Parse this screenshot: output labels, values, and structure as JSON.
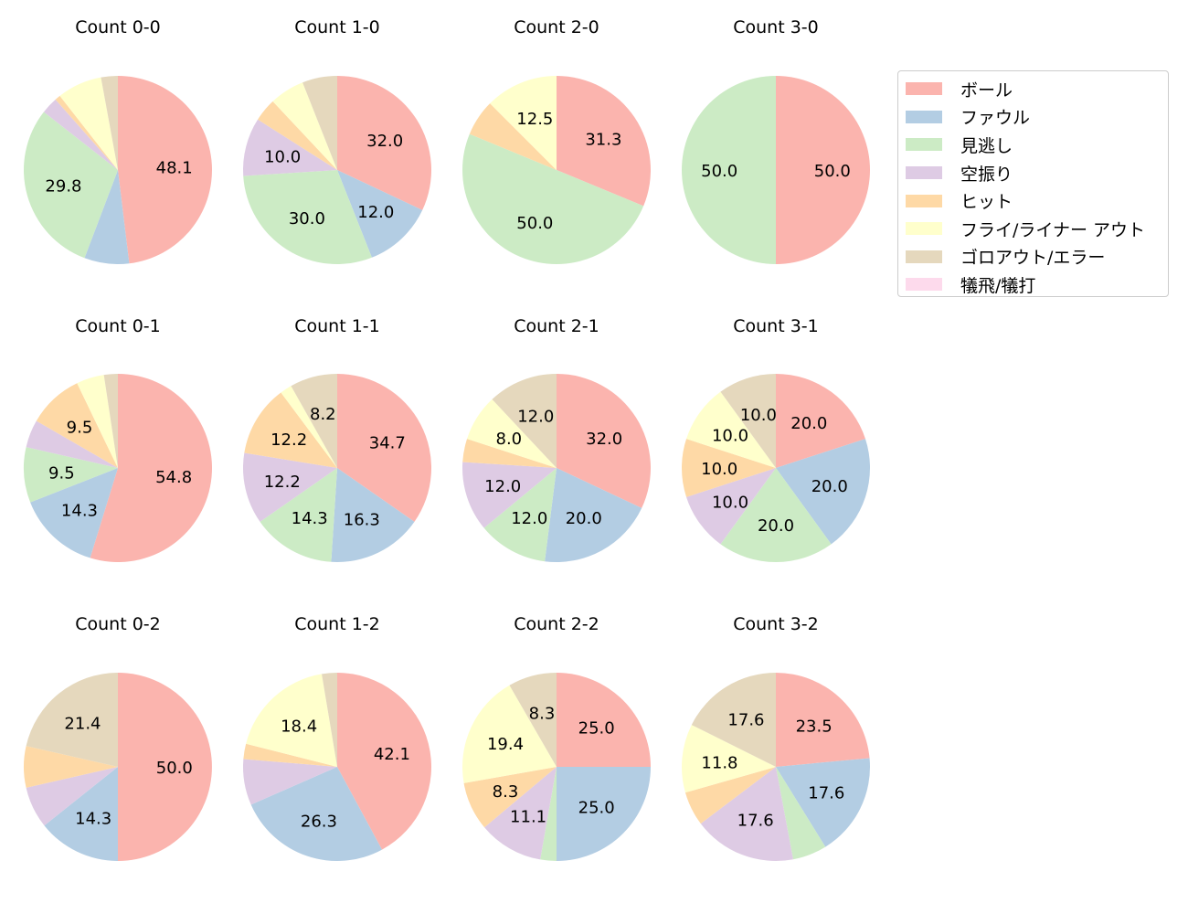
{
  "chart_data": {
    "type": "pie",
    "categories": [
      "ボール",
      "ファウル",
      "見逃し",
      "空振り",
      "ヒット",
      "フライ/ライナー アウト",
      "ゴロアウト/エラー",
      "犠飛/犠打"
    ],
    "colors": [
      "#fbb4ae",
      "#b3cde3",
      "#ccebc5",
      "#decbe4",
      "#fed9a6",
      "#ffffcc",
      "#e5d8bd",
      "#fddaec"
    ],
    "legend_position": "top-right",
    "label_threshold_percent": 8,
    "charts": [
      {
        "title": "Count 0-0",
        "values": [
          50,
          8,
          31,
          3,
          1,
          8,
          3,
          0
        ]
      },
      {
        "title": "Count 1-0",
        "values": [
          16,
          6,
          15,
          5,
          2,
          3,
          3,
          0
        ]
      },
      {
        "title": "Count 2-0",
        "values": [
          5,
          0,
          8,
          0,
          1,
          2,
          0,
          0
        ]
      },
      {
        "title": "Count 3-0",
        "values": [
          1,
          0,
          1,
          0,
          0,
          0,
          0,
          0
        ]
      },
      {
        "title": "Count 0-1",
        "values": [
          23,
          6,
          4,
          2,
          4,
          2,
          1,
          0
        ]
      },
      {
        "title": "Count 1-1",
        "values": [
          17,
          8,
          7,
          6,
          6,
          1,
          4,
          0
        ]
      },
      {
        "title": "Count 2-1",
        "values": [
          8,
          5,
          3,
          3,
          1,
          2,
          3,
          0
        ]
      },
      {
        "title": "Count 3-1",
        "values": [
          2,
          2,
          2,
          1,
          1,
          1,
          1,
          0
        ]
      },
      {
        "title": "Count 0-2",
        "values": [
          7,
          2,
          0,
          1,
          1,
          0,
          3,
          0
        ]
      },
      {
        "title": "Count 1-2",
        "values": [
          16,
          10,
          0,
          3,
          1,
          7,
          1,
          0
        ]
      },
      {
        "title": "Count 2-2",
        "values": [
          9,
          9,
          1,
          4,
          3,
          7,
          3,
          0
        ]
      },
      {
        "title": "Count 3-2",
        "values": [
          4,
          3,
          1,
          3,
          1,
          2,
          3,
          0
        ]
      }
    ]
  }
}
